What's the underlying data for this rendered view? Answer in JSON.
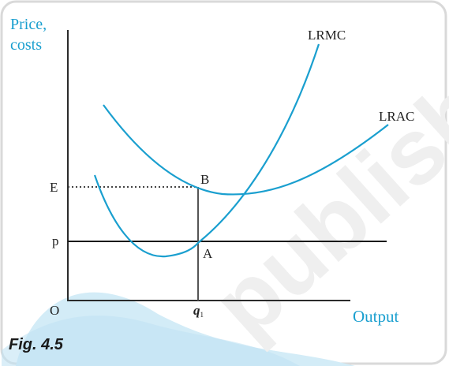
{
  "figure": {
    "caption": "Fig. 4.5",
    "watermark": "published",
    "colors": {
      "curve": "#1a9fcf",
      "axis": "#2b2b2b",
      "axis_label": "#1a9fcf",
      "band": "#c9e6f4",
      "watermark": "#f1f1f1",
      "frame": "#d9d9d9"
    }
  },
  "axes": {
    "y_label_line1": "Price,",
    "y_label_line2": "costs",
    "x_label": "Output",
    "origin": "O",
    "y_tick_E": "E",
    "y_tick_p": "p",
    "x_tick_q": "q",
    "x_tick_q_sub": "1"
  },
  "curves": {
    "lrmc_label": "LRMC",
    "lrac_label": "LRAC"
  },
  "points": {
    "B": "B",
    "A": "A"
  }
}
